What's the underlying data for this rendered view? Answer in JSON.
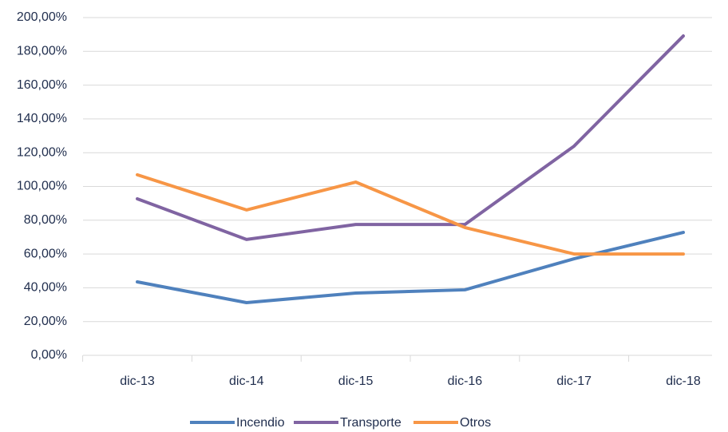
{
  "chart_data": {
    "type": "line",
    "categories": [
      "dic-13",
      "dic-14",
      "dic-15",
      "dic-16",
      "dic-17",
      "dic-18"
    ],
    "series": [
      {
        "name": "Incendio",
        "color": "#4f81bd",
        "values": [
          43.5,
          31.2,
          36.9,
          38.8,
          57.2,
          72.8
        ]
      },
      {
        "name": "Transporte",
        "color": "#8064a2",
        "values": [
          92.7,
          68.6,
          77.5,
          77.5,
          123.9,
          189.1
        ]
      },
      {
        "name": "Otros",
        "color": "#f79646",
        "values": [
          106.9,
          86.1,
          102.6,
          75.7,
          60.0,
          60.0
        ]
      }
    ],
    "ylim": [
      0,
      200
    ],
    "yticks": [
      {
        "value": 0,
        "label": "0,00%"
      },
      {
        "value": 20,
        "label": "20,00%"
      },
      {
        "value": 40,
        "label": "40,00%"
      },
      {
        "value": 60,
        "label": "60,00%"
      },
      {
        "value": 80,
        "label": "80,00%"
      },
      {
        "value": 100,
        "label": "100,00%"
      },
      {
        "value": 120,
        "label": "120,00%"
      },
      {
        "value": 140,
        "label": "140,00%"
      },
      {
        "value": 160,
        "label": "160,00%"
      },
      {
        "value": 180,
        "label": "180,00%"
      },
      {
        "value": 200,
        "label": "200,00%"
      }
    ],
    "grid": true,
    "legend": "bottom"
  }
}
